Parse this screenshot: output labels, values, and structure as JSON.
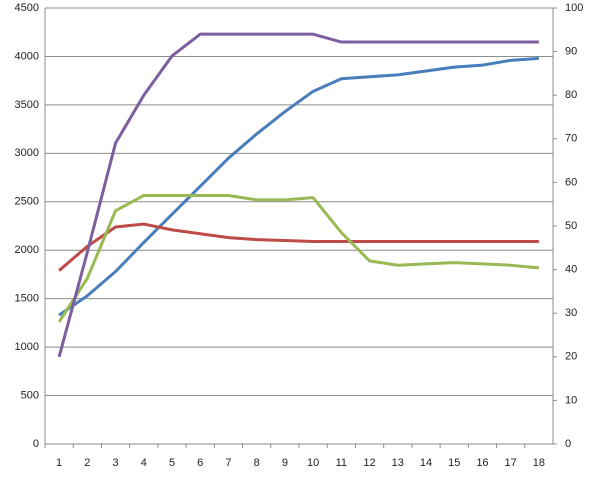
{
  "chart_data": {
    "type": "line",
    "categories": [
      1,
      2,
      3,
      4,
      5,
      6,
      7,
      8,
      9,
      10,
      11,
      12,
      13,
      14,
      15,
      16,
      17,
      18
    ],
    "ylim": [
      0,
      4500
    ],
    "yticks": [
      0,
      500,
      1000,
      1500,
      2000,
      2500,
      3000,
      3500,
      4000,
      4500
    ],
    "y2lim": [
      0,
      100
    ],
    "y2ticks": [
      0,
      10,
      20,
      30,
      40,
      50,
      60,
      70,
      80,
      90,
      100
    ],
    "grid": true,
    "series": [
      {
        "color": "#4a7ebb",
        "values": [
          1330,
          1530,
          1780,
          2080,
          2370,
          2660,
          2950,
          3200,
          3430,
          3640,
          3770,
          3790,
          3810,
          3850,
          3890,
          3910,
          3960,
          3980
        ]
      },
      {
        "color": "#be4b48",
        "values": [
          1790,
          2040,
          2240,
          2270,
          2210,
          2170,
          2130,
          2110,
          2100,
          2090,
          2090,
          2090,
          2090,
          2090,
          2090,
          2090,
          2090,
          2090
        ]
      },
      {
        "color": "#98b954",
        "axis": "y2",
        "values": [
          28,
          38,
          53.5,
          57,
          57,
          57,
          57,
          56,
          56,
          56.5,
          48.5,
          42,
          41,
          41.3,
          41.6,
          41.3,
          41,
          40.4
        ]
      },
      {
        "color": "#7d5fa0",
        "axis": "y2",
        "values": [
          20,
          44,
          69,
          80,
          89,
          94,
          94,
          94,
          94,
          94,
          92.2,
          92.2,
          92.2,
          92.2,
          92.2,
          92.2,
          92.2,
          92.2
        ]
      }
    ]
  }
}
